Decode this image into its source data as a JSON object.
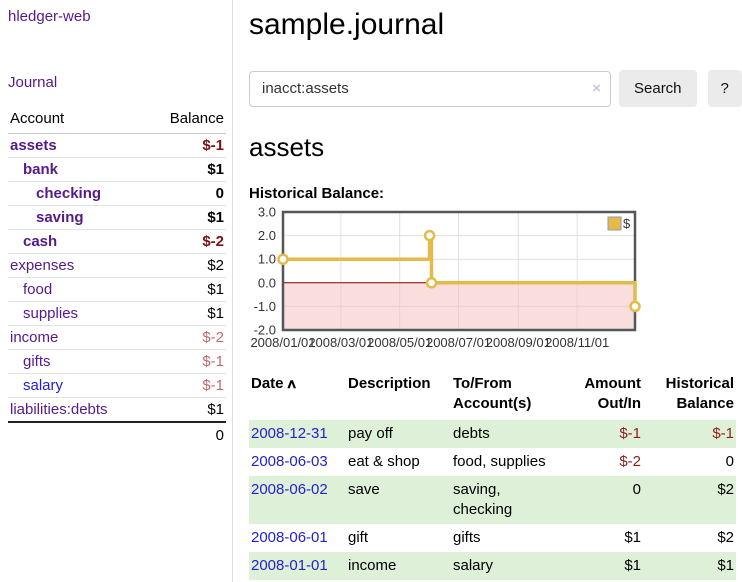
{
  "colors": {
    "link_purple": "#551a8b",
    "link_blue": "#2222cc",
    "negative_bold": "#7a1212",
    "negative_light": "#c06b6b",
    "negative_table": "#8f1d1d",
    "stripe_green": "#dff0d8",
    "chart_gold": "#e3bb4a",
    "chart_negative_region": "rgba(246,195,195,0.55)",
    "chart_zero_line": "#8b0000"
  },
  "sidebar": {
    "app_title": "hledger-web",
    "journal_link": "Journal",
    "accounts": {
      "header_account": "Account",
      "header_balance": "Balance",
      "rows": [
        {
          "name": "assets",
          "balance": "$-1",
          "depth": 0,
          "bold": true,
          "neg": "neg-dark"
        },
        {
          "name": "bank",
          "balance": "$1",
          "depth": 1,
          "bold": true,
          "neg": ""
        },
        {
          "name": "checking",
          "balance": "0",
          "depth": 2,
          "bold": true,
          "neg": ""
        },
        {
          "name": "saving",
          "balance": "$1",
          "depth": 2,
          "bold": true,
          "neg": ""
        },
        {
          "name": "cash",
          "balance": "$-2",
          "depth": 1,
          "bold": true,
          "neg": "neg-dark"
        },
        {
          "name": "expenses",
          "balance": "$2",
          "depth": 0,
          "bold": false,
          "neg": ""
        },
        {
          "name": "food",
          "balance": "$1",
          "depth": 1,
          "bold": false,
          "neg": ""
        },
        {
          "name": "supplies",
          "balance": "$1",
          "depth": 1,
          "bold": false,
          "neg": ""
        },
        {
          "name": "income",
          "balance": "$-2",
          "depth": 0,
          "bold": false,
          "neg": "neg-light"
        },
        {
          "name": "gifts",
          "balance": "$-1",
          "depth": 1,
          "bold": false,
          "neg": "neg-light"
        },
        {
          "name": "salary",
          "balance": "$-1",
          "depth": 1,
          "bold": false,
          "neg": "neg-light",
          "blue": true
        },
        {
          "name": "liabilities:debts",
          "balance": "$1",
          "depth": 0,
          "bold": false,
          "neg": ""
        }
      ],
      "total": "0"
    }
  },
  "main": {
    "title": "sample.journal",
    "search": {
      "value": "inacct:assets",
      "clear_icon": "×",
      "button_label": "Search",
      "help_label": "?"
    },
    "account_heading": "assets",
    "chart_label": "Historical Balance:",
    "register": {
      "sort_icon": "∧",
      "headers": {
        "date": "Date",
        "description": "Description",
        "accounts_line1": "To/From",
        "accounts_line2": "Account(s)",
        "amount_line1": "Amount",
        "amount_line2": "Out/In",
        "balance_line1": "Historical",
        "balance_line2": "Balance"
      },
      "rows": [
        {
          "date": "2008-12-31",
          "description": "pay off",
          "accounts": [
            "debts"
          ],
          "amount": "$-1",
          "amount_neg": true,
          "balance": "$-1",
          "balance_neg": true,
          "shaded": true
        },
        {
          "date": "2008-06-03",
          "description": "eat & shop",
          "accounts": [
            "food, supplies"
          ],
          "amount": "$-2",
          "amount_neg": true,
          "balance": "0",
          "balance_neg": false,
          "shaded": false
        },
        {
          "date": "2008-06-02",
          "description": "save",
          "accounts": [
            "saving,",
            "checking"
          ],
          "amount": "0",
          "amount_neg": false,
          "balance": "$2",
          "balance_neg": false,
          "shaded": true
        },
        {
          "date": "2008-06-01",
          "description": "gift",
          "accounts": [
            "gifts"
          ],
          "amount": "$1",
          "amount_neg": false,
          "balance": "$2",
          "balance_neg": false,
          "shaded": false
        },
        {
          "date": "2008-01-01",
          "description": "income",
          "accounts": [
            "salary"
          ],
          "amount": "$1",
          "amount_neg": false,
          "balance": "$1",
          "balance_neg": false,
          "shaded": true
        }
      ]
    }
  },
  "chart_data": {
    "type": "line",
    "step": true,
    "title": "Historical Balance:",
    "series": [
      {
        "name": "$",
        "color": "#e3bb4a",
        "points": [
          [
            "2008-01-01",
            1
          ],
          [
            "2008-06-01",
            2
          ],
          [
            "2008-06-03",
            0
          ],
          [
            "2008-12-31",
            -1
          ]
        ]
      }
    ],
    "xlim": [
      "2008-01-01",
      "2008-12-31"
    ],
    "ylim": [
      -2,
      3
    ],
    "yticks": [
      "3.0",
      "2.0",
      "1.0",
      "0.0",
      "-1.0",
      "-2.0"
    ],
    "xticks": [
      "2008/01/01",
      "2008/03/01",
      "2008/05/01",
      "2008/07/01",
      "2008/09/01",
      "2008/11/01"
    ],
    "grid": true,
    "legend_position": "top-right",
    "negative_region_fill": "rgba(246,195,195,0.55)",
    "zero_line_color": "#8b0000"
  }
}
